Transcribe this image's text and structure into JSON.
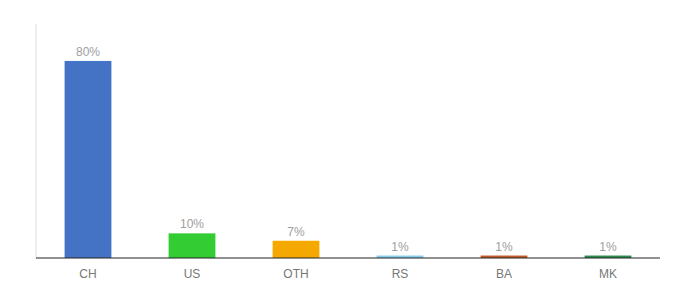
{
  "chart_data": {
    "type": "bar",
    "categories": [
      "CH",
      "US",
      "OTH",
      "RS",
      "BA",
      "MK"
    ],
    "values": [
      80,
      10,
      7,
      1,
      1,
      1
    ],
    "value_labels": [
      "80%",
      "10%",
      "7%",
      "1%",
      "1%",
      "1%"
    ],
    "colors": [
      "#4472c4",
      "#33cc33",
      "#f5a800",
      "#87ceeb",
      "#c05a2a",
      "#2d8a4e"
    ],
    "ylim": [
      0,
      95
    ],
    "data_labels": true,
    "tick_labels": "x",
    "grid": false
  }
}
